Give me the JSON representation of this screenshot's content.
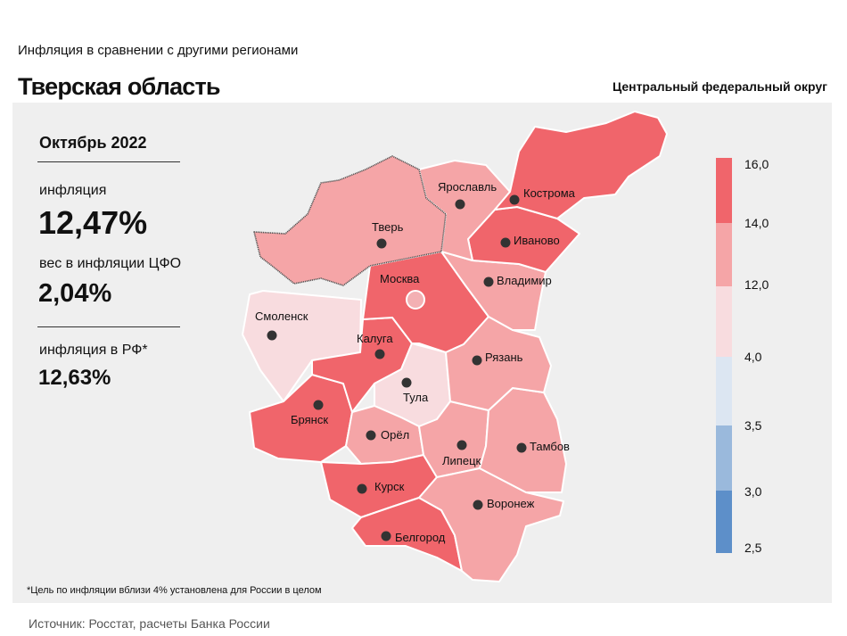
{
  "header": {
    "supertitle": "Инфляция в сравнении с другими регионами",
    "title": "Тверская область",
    "region_group": "Центральный федеральный округ"
  },
  "stats": {
    "period": "Октябрь 2022",
    "inflation_label": "инфляция",
    "inflation_value": "12,47%",
    "weight_label": "вес в инфляции ЦФО",
    "weight_value": "2,04%",
    "rf_label": "инфляция в РФ*",
    "rf_value": "12,63%"
  },
  "legend": {
    "ticks": [
      "16,0",
      "14,0",
      "12,0",
      "4,0",
      "3,5",
      "3,0",
      "2,5"
    ],
    "colors": [
      "#f0656b",
      "#f5a5a7",
      "#f8dcdf",
      "#dce6f2",
      "#9ab9dc",
      "#5d8fc9"
    ]
  },
  "regions": [
    {
      "name": "Тверь",
      "value_class": "12–14"
    },
    {
      "name": "Ярославль",
      "value_class": "12–14"
    },
    {
      "name": "Кострома",
      "value_class": "14–16"
    },
    {
      "name": "Иваново",
      "value_class": "14–16"
    },
    {
      "name": "Москва",
      "value_class": "14–16"
    },
    {
      "name": "Владимир",
      "value_class": "12–14"
    },
    {
      "name": "Смоленск",
      "value_class": "4–12"
    },
    {
      "name": "Калуга",
      "value_class": "14–16"
    },
    {
      "name": "Рязань",
      "value_class": "12–14"
    },
    {
      "name": "Тула",
      "value_class": "4–12"
    },
    {
      "name": "Брянск",
      "value_class": "14–16"
    },
    {
      "name": "Орёл",
      "value_class": "12–14"
    },
    {
      "name": "Липецк",
      "value_class": "12–14"
    },
    {
      "name": "Тамбов",
      "value_class": "12–14"
    },
    {
      "name": "Курск",
      "value_class": "14–16"
    },
    {
      "name": "Воронеж",
      "value_class": "12–14"
    },
    {
      "name": "Белгород",
      "value_class": "14–16"
    }
  ],
  "footnote": "*Цель по инфляции вблизи 4% установлена для России в целом",
  "source": "Источник: Росстат, расчеты Банка России"
}
